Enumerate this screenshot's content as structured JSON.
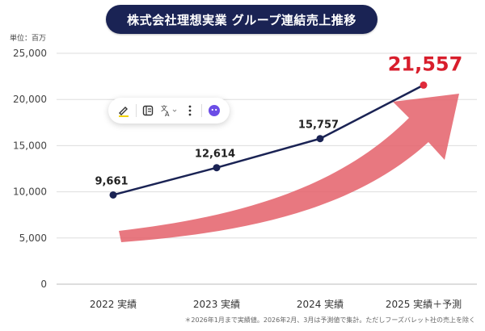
{
  "title": "株式会社理想実業 グループ連結売上推移",
  "unit_label": "単位：百万",
  "footnote": "＊2026年1月まで実績値。2026年2月、3月は予測値で集計。ただしフーズバレット社の売上を除く",
  "colors": {
    "title_bg": "#1a2354",
    "line": "#1a2354",
    "highlight_point": "#e02b3c",
    "highlight_label": "#d81e2c",
    "arrow": "#e4606a",
    "grid": "#dddddd"
  },
  "toolbar": {
    "icons": [
      "highlighter-icon",
      "note-icon",
      "translate-icon",
      "more-icon",
      "assistant-icon"
    ]
  },
  "chart_data": {
    "type": "line",
    "categories": [
      "2022 実績",
      "2023 実績",
      "2024 実績",
      "2025 実績＋予測"
    ],
    "series": [
      {
        "values": [
          9661,
          12614,
          15757,
          21557
        ]
      }
    ],
    "data_labels": [
      "9,661",
      "12,614",
      "15,757",
      "21,557"
    ],
    "yticks": [
      "0",
      "5,000",
      "10,000",
      "15,000",
      "20,000",
      "25,000"
    ],
    "ylim": [
      0,
      25000
    ],
    "grid": true,
    "annotation": "upward trend arrow"
  }
}
